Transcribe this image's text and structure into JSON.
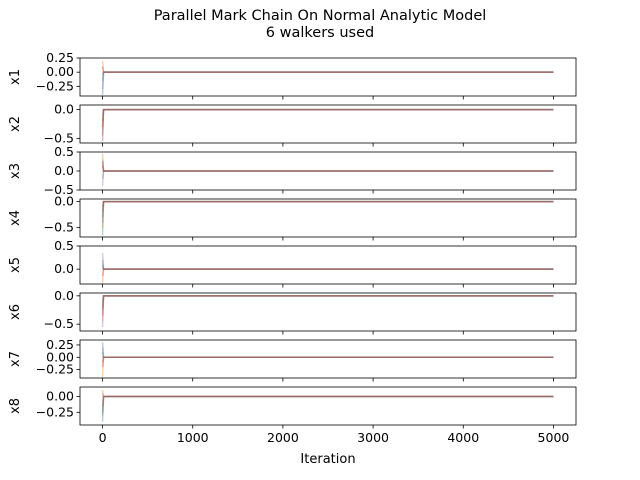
{
  "figure": {
    "title": "Parallel Mark Chain On Normal Analytic Model",
    "subtitle": "6 walkers used"
  },
  "chart_data": {
    "type": "line",
    "title": "Parallel Mark Chain On Normal Analytic Model",
    "subtitle": "6 walkers used",
    "xlabel": "Iteration",
    "xlim": [
      -250,
      5250
    ],
    "x_ticks": [
      0,
      1000,
      2000,
      3000,
      4000,
      5000
    ],
    "n_iterations": 5000,
    "walker_colors": [
      "#1f77b4",
      "#ff7f0e",
      "#2ca02c",
      "#d62728",
      "#9467bd",
      "#8c564b"
    ],
    "walker_alpha": 0.35,
    "grid": false,
    "legend": "none",
    "panels": [
      {
        "ylabel": "x1",
        "ylim": [
          -0.42,
          0.25
        ],
        "yticks": [
          0.25,
          0.0,
          -0.25
        ],
        "ytick_labels": [
          "0.25",
          "0.00",
          "−0.25"
        ],
        "burn_in_start": [
          -0.4,
          0.2,
          -0.15,
          0.1,
          -0.3,
          -0.05
        ],
        "final": [
          0.0,
          0.0,
          0.0,
          0.0,
          0.0,
          0.0
        ]
      },
      {
        "ylabel": "x2",
        "ylim": [
          -0.58,
          0.08
        ],
        "yticks": [
          0.0,
          -0.5
        ],
        "ytick_labels": [
          "0.0",
          "−0.5"
        ],
        "burn_in_start": [
          -0.45,
          -0.35,
          -0.2,
          -0.55,
          -0.1,
          -0.3
        ],
        "final": [
          0.0,
          0.0,
          0.0,
          0.0,
          0.0,
          0.0
        ]
      },
      {
        "ylabel": "x3",
        "ylim": [
          -0.5,
          0.5
        ],
        "yticks": [
          0.5,
          0.0,
          -0.5
        ],
        "ytick_labels": [
          "0.5",
          "0.0",
          "−0.5"
        ],
        "burn_in_start": [
          0.3,
          0.45,
          -0.2,
          0.15,
          -0.4,
          0.25
        ],
        "final": [
          0.0,
          0.0,
          0.0,
          0.0,
          0.0,
          0.0
        ]
      },
      {
        "ylabel": "x4",
        "ylim": [
          -0.68,
          0.05
        ],
        "yticks": [
          0.0,
          -0.5
        ],
        "ytick_labels": [
          "0.0",
          "−0.5"
        ],
        "burn_in_start": [
          -0.3,
          -0.5,
          -0.65,
          -0.2,
          -0.4,
          -0.1
        ],
        "final": [
          0.0,
          0.0,
          0.0,
          0.0,
          0.0,
          0.0
        ]
      },
      {
        "ylabel": "x5",
        "ylim": [
          -0.32,
          0.5
        ],
        "yticks": [
          0.5,
          0.0
        ],
        "ytick_labels": [
          "0.5",
          "0.0"
        ],
        "burn_in_start": [
          0.2,
          -0.3,
          0.1,
          -0.15,
          0.35,
          0.05
        ],
        "final": [
          0.0,
          0.0,
          0.0,
          0.0,
          0.0,
          0.0
        ]
      },
      {
        "ylabel": "x6",
        "ylim": [
          -0.62,
          0.05
        ],
        "yticks": [
          0.0,
          -0.5
        ],
        "ytick_labels": [
          "0.0",
          "−0.5"
        ],
        "burn_in_start": [
          -0.2,
          -0.45,
          -0.1,
          -0.35,
          -0.55,
          -0.25
        ],
        "final": [
          0.0,
          0.0,
          0.0,
          0.0,
          0.0,
          0.0
        ]
      },
      {
        "ylabel": "x7",
        "ylim": [
          -0.42,
          0.35
        ],
        "yticks": [
          0.25,
          0.0,
          -0.25
        ],
        "ytick_labels": [
          "0.25",
          "0.00",
          "−0.25"
        ],
        "burn_in_start": [
          0.3,
          -0.4,
          0.1,
          -0.2,
          0.2,
          -0.1
        ],
        "final": [
          0.0,
          0.0,
          0.0,
          0.0,
          0.0,
          0.0
        ]
      },
      {
        "ylabel": "x8",
        "ylim": [
          -0.45,
          0.15
        ],
        "yticks": [
          0.0,
          -0.25
        ],
        "ytick_labels": [
          "0.00",
          "−0.25"
        ],
        "burn_in_start": [
          -0.4,
          0.1,
          -0.3,
          -0.15,
          0.05,
          -0.25
        ],
        "final": [
          0.0,
          0.0,
          0.0,
          0.0,
          0.0,
          0.0
        ]
      }
    ]
  }
}
